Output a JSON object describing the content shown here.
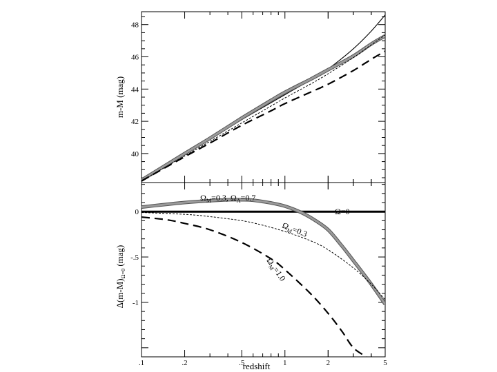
{
  "chart_data": [
    {
      "type": "line",
      "panel": "top",
      "xlabel": "redshift",
      "ylabel": "m-M (mag)",
      "x_scale": "log",
      "xlim": [
        0.1,
        5
      ],
      "ylim": [
        38.2,
        48.8
      ],
      "x_tick_labels": [],
      "y_ticks": [
        40,
        42,
        44,
        46,
        48
      ],
      "y_tick_labels": [
        "40",
        "42",
        "44",
        "46",
        "48"
      ],
      "series": [
        {
          "style": "solid-thin",
          "x": [
            0.1,
            0.2,
            0.3,
            0.5,
            0.8,
            1,
            1.5,
            2,
            3,
            4,
            5
          ],
          "y": [
            38.35,
            39.95,
            40.9,
            42.1,
            43.15,
            43.65,
            44.55,
            45.25,
            46.5,
            47.6,
            48.6
          ]
        },
        {
          "style": "gray-thick",
          "x": [
            0.1,
            0.2,
            0.3,
            0.5,
            0.8,
            1,
            1.5,
            2,
            3,
            4,
            5
          ],
          "y": [
            38.35,
            40.0,
            40.95,
            42.2,
            43.3,
            43.8,
            44.6,
            45.2,
            46.05,
            46.8,
            47.3
          ]
        },
        {
          "style": "dashed-fine",
          "x": [
            0.1,
            0.2,
            0.3,
            0.5,
            0.8,
            1,
            1.5,
            2,
            3,
            4,
            5
          ],
          "y": [
            38.3,
            39.85,
            40.75,
            41.9,
            42.95,
            43.45,
            44.3,
            44.95,
            45.95,
            46.75,
            47.35
          ]
        },
        {
          "style": "dashed-long",
          "x": [
            0.1,
            0.2,
            0.3,
            0.5,
            0.8,
            1,
            1.5,
            2,
            3,
            4,
            5
          ],
          "y": [
            38.3,
            39.8,
            40.65,
            41.75,
            42.65,
            43.1,
            43.8,
            44.3,
            45.15,
            45.85,
            46.35
          ]
        }
      ]
    },
    {
      "type": "line",
      "panel": "bottom",
      "xlabel": "redshift",
      "ylabel": "Δ(m-M)",
      "ylabel_sub": "Ω=0",
      "ylabel_unit": "(mag)",
      "x_scale": "log",
      "xlim": [
        0.1,
        5
      ],
      "ylim": [
        -1.6,
        0.32
      ],
      "x_ticks": [
        0.1,
        0.2,
        0.5,
        1,
        2,
        5
      ],
      "x_tick_labels": [
        ".1",
        ".2",
        ".5",
        "1",
        "2",
        "5"
      ],
      "y_ticks": [
        0,
        -0.5,
        -1
      ],
      "y_tick_labels": [
        "0",
        "-.5",
        "-1"
      ],
      "annotations": [
        {
          "text": "Ω",
          "sub": "M",
          "rest": "=0.3, Ω",
          "sub2": "Λ",
          "rest2": "=0.7"
        },
        {
          "text": "Ω=0"
        },
        {
          "text": "Ω",
          "sub": "M",
          "rest": "=0.3"
        },
        {
          "text": "Ω",
          "sub": "M",
          "rest": "=1.0"
        }
      ],
      "series": [
        {
          "style": "solid-black-thick",
          "name": "Ω=0",
          "x": [
            0.1,
            5
          ],
          "y": [
            0,
            0
          ]
        },
        {
          "style": "gray-thick",
          "name": "ΩM=0.3, ΩΛ=0.7",
          "x": [
            0.1,
            0.15,
            0.2,
            0.3,
            0.4,
            0.5,
            0.6,
            0.8,
            1.0,
            1.3,
            1.6,
            2.0,
            2.5,
            3.0,
            4.0,
            5.0
          ],
          "y": [
            0.05,
            0.08,
            0.1,
            0.12,
            0.13,
            0.13,
            0.125,
            0.095,
            0.06,
            -0.01,
            -0.09,
            -0.2,
            -0.38,
            -0.54,
            -0.8,
            -1.02
          ]
        },
        {
          "style": "dashed-fine",
          "name": "ΩM=0.3",
          "x": [
            0.1,
            0.2,
            0.3,
            0.5,
            0.7,
            1.0,
            1.5,
            2.0,
            3.0,
            4.0,
            5.0
          ],
          "y": [
            -0.01,
            -0.03,
            -0.055,
            -0.1,
            -0.15,
            -0.22,
            -0.32,
            -0.42,
            -0.62,
            -0.8,
            -0.97
          ]
        },
        {
          "style": "dashed-long",
          "name": "ΩM=1.0",
          "x": [
            0.1,
            0.15,
            0.2,
            0.3,
            0.5,
            0.8,
            1.0,
            1.5,
            2.0,
            2.5,
            3.0,
            3.7
          ],
          "y": [
            -0.06,
            -0.09,
            -0.13,
            -0.2,
            -0.34,
            -0.52,
            -0.64,
            -0.9,
            -1.12,
            -1.32,
            -1.5,
            -1.6
          ]
        }
      ]
    }
  ]
}
